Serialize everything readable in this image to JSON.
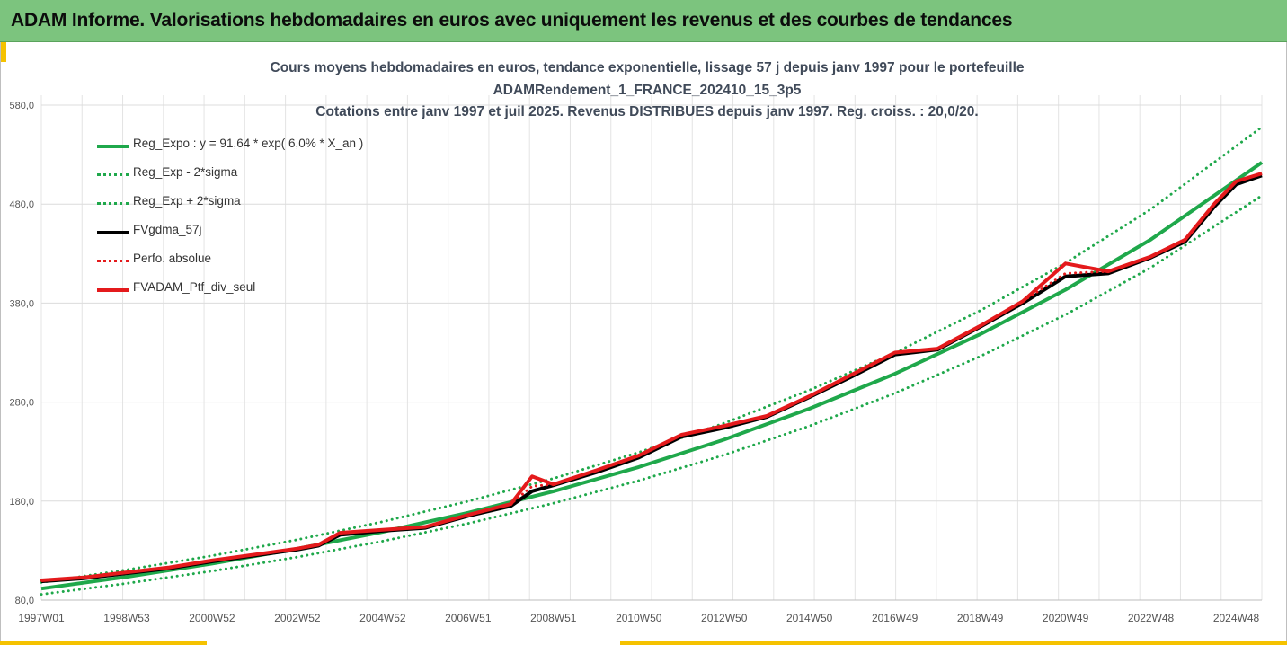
{
  "header": {
    "title": "ADAM Informe. Valorisations hebdomadaires en euros avec uniquement les revenus et des courbes de tendances"
  },
  "chart_data": {
    "type": "line",
    "title_lines": [
      "Cours moyens hebdomadaires  en euros, tendance exponentielle, lissage 57 j depuis janv 1997 pour le portefeuille",
      "ADAMRendement_1_FRANCE_202410_15_3p5",
      "Cotations  entre janv 1997 et juil 2025. Revenus DISTRIBUES depuis janv 1997. Reg. croiss. : 20,0/20."
    ],
    "xlabel": "",
    "ylabel": "",
    "ylim": [
      80,
      590
    ],
    "xlim": [
      1997.0,
      2025.6
    ],
    "grid": true,
    "legend_position": "top-left",
    "yticks": [
      80,
      180,
      280,
      380,
      480,
      580
    ],
    "ytick_labels": [
      "80,0",
      "180,0",
      "280,0",
      "380,0",
      "480,0",
      "580,0"
    ],
    "xticks": [
      1997.0,
      1999.0,
      2001.0,
      2003.0,
      2005.0,
      2007.0,
      2009.0,
      2011.0,
      2013.0,
      2015.0,
      2017.0,
      2019.0,
      2021.0,
      2023.0,
      2025.0
    ],
    "xtick_labels": [
      "1997W01",
      "1998W53",
      "2000W52",
      "2002W52",
      "2004W52",
      "2006W51",
      "2008W51",
      "2010W50",
      "2012W50",
      "2014W50",
      "2016W49",
      "2018W49",
      "2020W49",
      "2022W48",
      "2024W48"
    ],
    "series": [
      {
        "name": "Reg_Expo : y = 91,64 * exp( 6,0% *  X_an )",
        "color": "#1fa84b",
        "style": "solid",
        "width": 4,
        "x": [
          1997.0,
          1999.0,
          2001.0,
          2003.0,
          2005.0,
          2007.0,
          2009.0,
          2011.0,
          2013.0,
          2015.0,
          2017.0,
          2019.0,
          2021.0,
          2023.0,
          2025.6
        ],
        "y": [
          91.6,
          103.5,
          116.8,
          131.9,
          149.0,
          168.2,
          189.9,
          214.4,
          242.1,
          273.4,
          308.6,
          348.5,
          393.5,
          444.3,
          522.0
        ]
      },
      {
        "name": "Reg_Exp - 2*sigma",
        "color": "#1fa84b",
        "style": "dotted",
        "width": 3,
        "x": [
          1997.0,
          1999.0,
          2001.0,
          2003.0,
          2005.0,
          2007.0,
          2009.0,
          2011.0,
          2013.0,
          2015.0,
          2017.0,
          2019.0,
          2021.0,
          2023.0,
          2025.6
        ],
        "y": [
          85.8,
          96.9,
          109.3,
          123.5,
          139.5,
          157.4,
          177.8,
          200.7,
          226.6,
          255.9,
          288.9,
          326.2,
          368.3,
          415.9,
          488.6
        ]
      },
      {
        "name": "Reg_Exp + 2*sigma",
        "color": "#1fa84b",
        "style": "dotted",
        "width": 3,
        "x": [
          1997.0,
          1999.0,
          2001.0,
          2003.0,
          2005.0,
          2007.0,
          2009.0,
          2011.0,
          2013.0,
          2015.0,
          2017.0,
          2019.0,
          2021.0,
          2023.0,
          2025.6
        ],
        "y": [
          97.9,
          110.6,
          124.8,
          141.0,
          159.2,
          179.8,
          202.9,
          229.2,
          258.7,
          292.1,
          329.8,
          372.4,
          420.5,
          474.8,
          557.8
        ]
      },
      {
        "name": "FVgdma_57j",
        "color": "#000000",
        "style": "solid",
        "width": 4,
        "x": [
          1997.0,
          1998.0,
          1999.0,
          2000.0,
          2001.0,
          2002.0,
          2003.0,
          2003.5,
          2004.0,
          2005.0,
          2006.0,
          2007.0,
          2008.0,
          2008.5,
          2009.0,
          2010.0,
          2011.0,
          2012.0,
          2013.0,
          2014.0,
          2015.0,
          2016.0,
          2017.0,
          2018.0,
          2019.0,
          2020.0,
          2021.0,
          2022.0,
          2023.0,
          2023.8,
          2024.5,
          2025.0,
          2025.6
        ],
        "y": [
          99,
          102,
          107,
          112,
          119,
          125,
          131,
          135,
          146,
          150,
          153,
          165,
          175,
          190,
          196,
          209,
          224,
          245,
          254,
          265,
          285,
          306,
          328,
          333,
          356,
          380,
          407,
          410,
          426,
          442,
          478,
          500,
          509
        ]
      },
      {
        "name": "Perfo. absolue",
        "color": "#e41a1c",
        "style": "dotted",
        "width": 3,
        "x": [
          1997.0,
          1998.0,
          1999.0,
          2000.0,
          2001.0,
          2002.0,
          2003.0,
          2003.5,
          2004.0,
          2005.0,
          2006.0,
          2007.0,
          2008.0,
          2008.5,
          2009.0,
          2010.0,
          2011.0,
          2012.0,
          2013.0,
          2014.0,
          2015.0,
          2016.0,
          2017.0,
          2018.0,
          2019.0,
          2020.0,
          2021.0,
          2022.0,
          2023.0,
          2023.8,
          2024.5,
          2025.0,
          2025.6
        ],
        "y": [
          100,
          103,
          108,
          113,
          120,
          126,
          132,
          136,
          148,
          151,
          154,
          166,
          177,
          195,
          197,
          211,
          226,
          247,
          256,
          266,
          286,
          308,
          330,
          334,
          357,
          382,
          410,
          412,
          427,
          444,
          481,
          503,
          511
        ]
      },
      {
        "name": "FVADAM_Ptf_div_seul",
        "color": "#e41a1c",
        "style": "solid",
        "width": 4,
        "x": [
          1997.0,
          1998.0,
          1999.0,
          2000.0,
          2001.0,
          2002.0,
          2003.0,
          2003.5,
          2004.0,
          2005.0,
          2006.0,
          2007.0,
          2008.0,
          2008.5,
          2009.0,
          2010.0,
          2011.0,
          2012.0,
          2013.0,
          2014.0,
          2015.0,
          2016.0,
          2017.0,
          2018.0,
          2019.0,
          2020.0,
          2021.0,
          2022.0,
          2023.0,
          2023.8,
          2024.5,
          2025.0,
          2025.6
        ],
        "y": [
          100,
          103,
          108,
          113,
          120,
          126,
          132,
          136,
          148,
          151,
          154,
          166,
          177,
          205,
          197,
          211,
          226,
          247,
          256,
          266,
          286,
          308,
          330,
          334,
          357,
          382,
          420,
          412,
          427,
          444,
          481,
          503,
          511
        ]
      }
    ]
  }
}
